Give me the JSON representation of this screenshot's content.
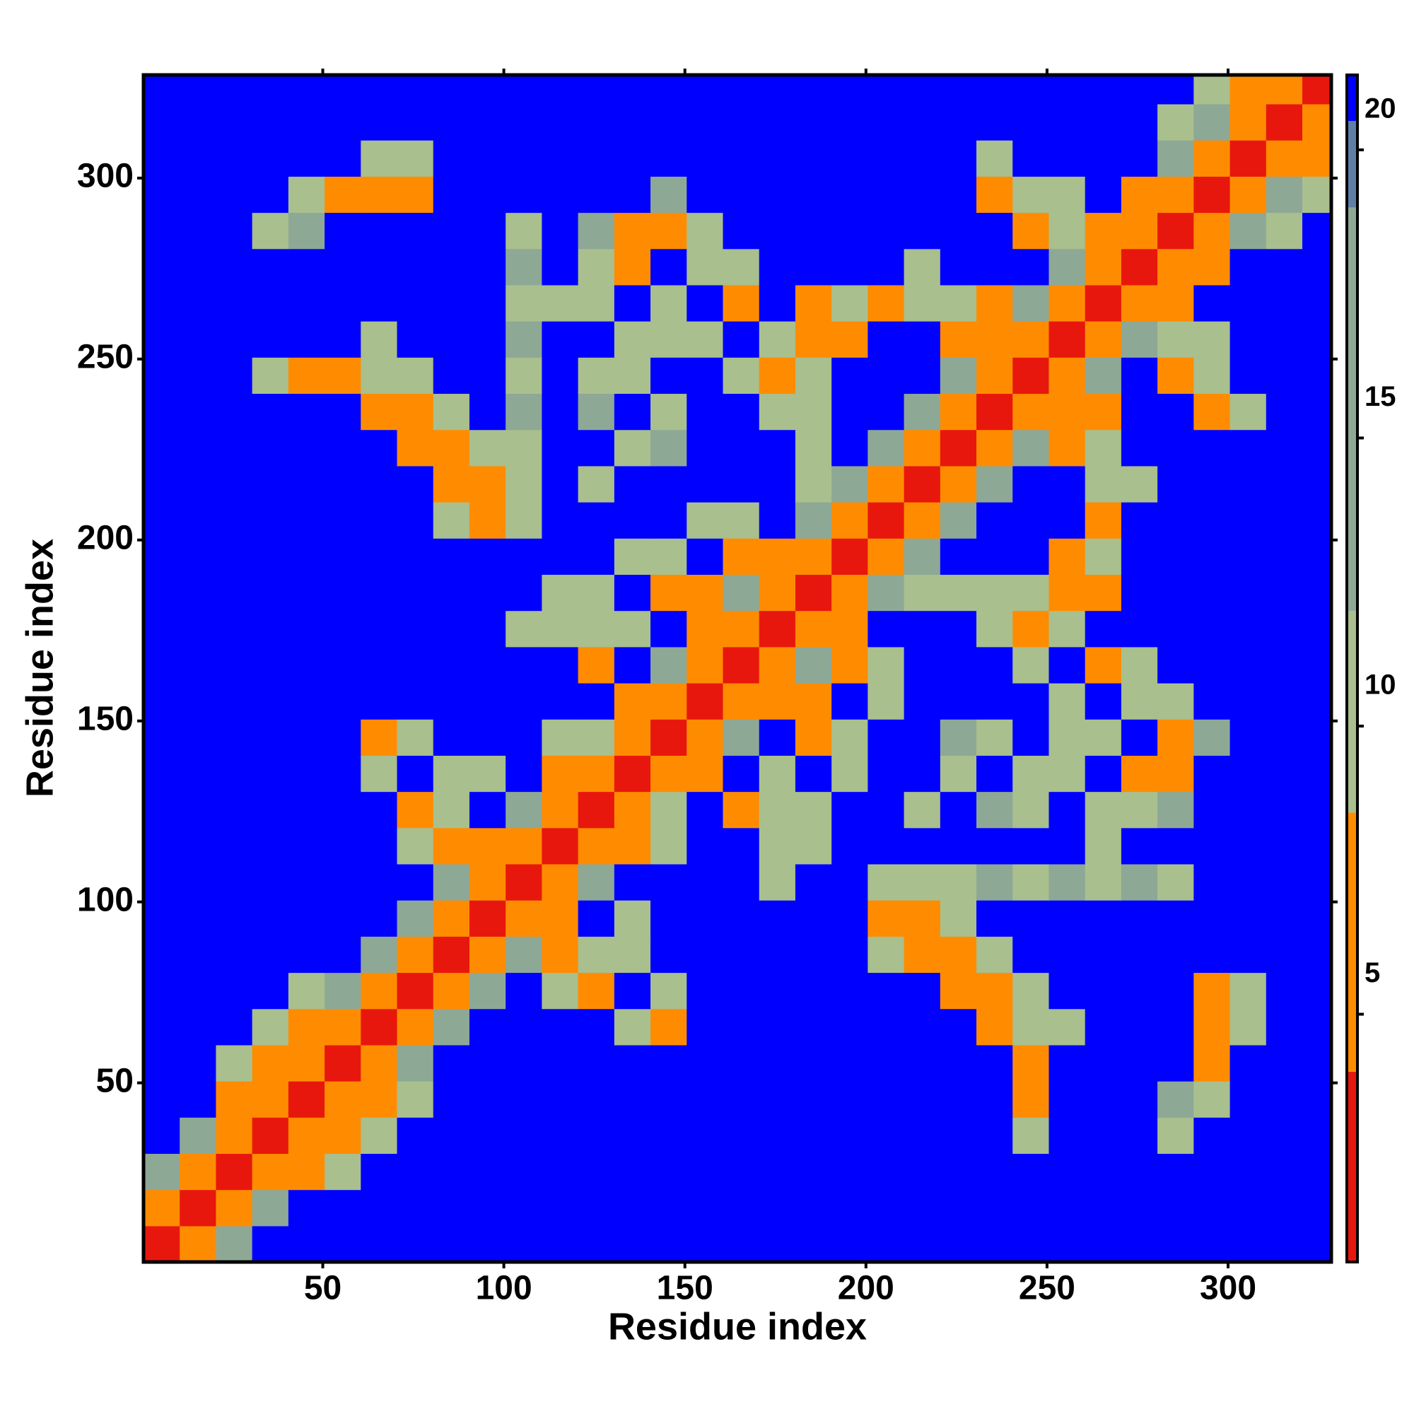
{
  "chart_data": {
    "type": "heatmap",
    "xlabel": "Residue index",
    "ylabel": "Residue index",
    "xlim": [
      0.5,
      328.5
    ],
    "ylim": [
      0.5,
      328.5
    ],
    "xticks": [
      50,
      100,
      150,
      200,
      250,
      300
    ],
    "yticks": [
      50,
      100,
      150,
      200,
      250,
      300
    ],
    "zlim": [
      0.7,
      21.3
    ],
    "zticks": [
      5,
      10,
      15,
      20
    ],
    "colorscale": [
      {
        "max": 4,
        "color": "#e8170d"
      },
      {
        "max": 8.5,
        "color": "#ff8c00"
      },
      {
        "max": 12,
        "color": "#a9bf8e"
      },
      {
        "max": 19,
        "color": "#8ea896"
      },
      {
        "max": 20.5,
        "color": "#5f7fa5"
      },
      {
        "max": 21.3,
        "color": "#0000ff"
      }
    ],
    "x": [
      5.5,
      15.5,
      25.5,
      35.5,
      45.5,
      55.5,
      65.5,
      75.5,
      85.5,
      95.5,
      105.5,
      115.5,
      125.5,
      135.5,
      145.5,
      155.5,
      165.5,
      175.5,
      185.5,
      195.5,
      205.5,
      215.5,
      225.5,
      235.5,
      245.5,
      255.5,
      265.5,
      275.5,
      285.5,
      295.5,
      305.5,
      315.5,
      325.5
    ],
    "y": [
      5.5,
      15.5,
      25.5,
      35.5,
      45.5,
      55.5,
      65.5,
      75.5,
      85.5,
      95.5,
      105.5,
      115.5,
      125.5,
      135.5,
      145.5,
      155.5,
      165.5,
      175.5,
      185.5,
      195.5,
      205.5,
      215.5,
      225.5,
      235.5,
      245.5,
      255.5,
      265.5,
      275.5,
      285.5,
      295.5,
      305.5,
      315.5,
      325.5
    ],
    "z": [
      [
        3,
        6,
        13,
        21,
        21,
        21,
        21,
        21,
        21,
        21,
        21,
        21,
        21,
        21,
        21,
        21,
        21,
        21,
        21,
        21,
        21,
        21,
        21,
        21,
        21,
        21,
        21,
        21,
        21,
        21,
        21,
        21,
        21
      ],
      [
        6,
        3,
        6,
        13,
        21,
        21,
        21,
        21,
        21,
        21,
        21,
        21,
        21,
        21,
        21,
        21,
        21,
        21,
        21,
        21,
        21,
        21,
        21,
        21,
        21,
        21,
        21,
        21,
        21,
        21,
        21,
        21,
        21
      ],
      [
        13,
        6,
        3,
        6,
        8,
        11,
        21,
        21,
        21,
        21,
        21,
        21,
        21,
        21,
        21,
        21,
        21,
        21,
        21,
        21,
        21,
        21,
        21,
        21,
        21,
        21,
        21,
        21,
        21,
        21,
        21,
        21,
        21
      ],
      [
        21,
        13,
        6,
        3,
        6,
        8,
        11,
        21,
        21,
        21,
        21,
        21,
        21,
        21,
        21,
        21,
        21,
        21,
        21,
        21,
        21,
        21,
        21,
        21,
        11,
        21,
        21,
        21,
        11,
        21,
        21,
        21,
        21
      ],
      [
        21,
        21,
        8,
        6,
        3,
        6,
        8,
        11,
        21,
        21,
        21,
        21,
        21,
        21,
        21,
        21,
        21,
        21,
        21,
        21,
        21,
        21,
        21,
        21,
        8,
        21,
        21,
        21,
        13,
        11,
        21,
        21,
        21
      ],
      [
        21,
        21,
        11,
        8,
        6,
        3,
        6,
        13,
        21,
        21,
        21,
        21,
        21,
        21,
        21,
        21,
        21,
        21,
        21,
        21,
        21,
        21,
        21,
        21,
        8,
        21,
        21,
        21,
        21,
        8,
        21,
        21,
        21
      ],
      [
        21,
        21,
        21,
        11,
        8,
        6,
        3,
        6,
        13,
        21,
        21,
        21,
        21,
        11,
        8,
        21,
        21,
        21,
        21,
        21,
        21,
        21,
        21,
        8,
        11,
        11,
        21,
        21,
        21,
        8,
        11,
        21,
        21
      ],
      [
        21,
        21,
        21,
        21,
        11,
        13,
        6,
        3,
        6,
        13,
        21,
        11,
        8,
        21,
        11,
        21,
        21,
        21,
        21,
        21,
        21,
        21,
        8,
        8,
        11,
        21,
        21,
        21,
        21,
        8,
        11,
        21,
        21
      ],
      [
        21,
        21,
        21,
        21,
        21,
        21,
        13,
        6,
        3,
        6,
        13,
        6,
        11,
        11,
        21,
        21,
        21,
        21,
        21,
        21,
        11,
        6,
        6,
        11,
        21,
        21,
        21,
        21,
        21,
        21,
        21,
        21,
        21
      ],
      [
        21,
        21,
        21,
        21,
        21,
        21,
        21,
        13,
        6,
        3,
        6,
        8,
        21,
        11,
        21,
        21,
        21,
        21,
        21,
        21,
        8,
        6,
        11,
        21,
        21,
        21,
        21,
        21,
        21,
        21,
        21,
        21,
        21
      ],
      [
        21,
        21,
        21,
        21,
        21,
        21,
        21,
        21,
        13,
        6,
        3,
        6,
        13,
        21,
        21,
        21,
        21,
        11,
        21,
        21,
        11,
        11,
        11,
        13,
        11,
        13,
        11,
        13,
        11,
        21,
        21,
        21,
        21
      ],
      [
        21,
        21,
        21,
        21,
        21,
        21,
        21,
        11,
        6,
        8,
        6,
        3,
        6,
        8,
        11,
        21,
        21,
        11,
        11,
        21,
        21,
        21,
        21,
        21,
        21,
        21,
        11,
        21,
        21,
        21,
        21,
        21,
        21
      ],
      [
        21,
        21,
        21,
        21,
        21,
        21,
        21,
        8,
        11,
        21,
        13,
        6,
        3,
        6,
        11,
        21,
        8,
        11,
        11,
        21,
        21,
        11,
        21,
        13,
        11,
        21,
        11,
        11,
        13,
        21,
        21,
        21,
        21
      ],
      [
        21,
        21,
        21,
        21,
        21,
        21,
        11,
        21,
        11,
        11,
        21,
        8,
        6,
        3,
        6,
        6,
        21,
        11,
        21,
        11,
        21,
        21,
        11,
        21,
        11,
        11,
        21,
        8,
        8,
        21,
        21,
        21,
        21
      ],
      [
        21,
        21,
        21,
        21,
        21,
        21,
        8,
        11,
        21,
        21,
        21,
        11,
        11,
        6,
        3,
        6,
        13,
        21,
        8,
        11,
        21,
        21,
        13,
        11,
        21,
        11,
        11,
        21,
        8,
        13,
        21,
        21,
        21
      ],
      [
        21,
        21,
        21,
        21,
        21,
        21,
        21,
        21,
        21,
        21,
        21,
        21,
        21,
        6,
        6,
        3,
        6,
        8,
        6,
        21,
        11,
        21,
        21,
        21,
        21,
        11,
        21,
        11,
        11,
        21,
        21,
        21,
        21
      ],
      [
        21,
        21,
        21,
        21,
        21,
        21,
        21,
        21,
        21,
        21,
        21,
        21,
        8,
        21,
        13,
        6,
        3,
        6,
        13,
        8,
        11,
        21,
        21,
        21,
        11,
        21,
        8,
        11,
        21,
        21,
        21,
        21,
        21
      ],
      [
        21,
        21,
        21,
        21,
        21,
        21,
        21,
        21,
        21,
        21,
        11,
        11,
        11,
        11,
        21,
        8,
        6,
        3,
        6,
        8,
        21,
        21,
        21,
        11,
        8,
        11,
        21,
        21,
        21,
        21,
        21,
        21,
        21
      ],
      [
        21,
        21,
        21,
        21,
        21,
        21,
        21,
        21,
        21,
        21,
        21,
        11,
        11,
        21,
        8,
        6,
        13,
        6,
        3,
        6,
        13,
        11,
        11,
        11,
        11,
        8,
        8,
        21,
        21,
        21,
        21,
        21,
        21
      ],
      [
        21,
        21,
        21,
        21,
        21,
        21,
        21,
        21,
        21,
        21,
        21,
        21,
        21,
        11,
        11,
        21,
        8,
        8,
        6,
        3,
        6,
        13,
        21,
        21,
        21,
        6,
        11,
        21,
        21,
        21,
        21,
        21,
        21
      ],
      [
        21,
        21,
        21,
        21,
        21,
        21,
        21,
        21,
        11,
        8,
        11,
        21,
        21,
        21,
        21,
        11,
        11,
        21,
        13,
        6,
        3,
        6,
        13,
        21,
        21,
        21,
        8,
        21,
        21,
        21,
        21,
        21,
        21
      ],
      [
        21,
        21,
        21,
        21,
        21,
        21,
        21,
        21,
        6,
        6,
        11,
        21,
        11,
        21,
        21,
        21,
        21,
        21,
        11,
        13,
        6,
        3,
        6,
        13,
        21,
        21,
        11,
        11,
        21,
        21,
        21,
        21,
        21
      ],
      [
        21,
        21,
        21,
        21,
        21,
        21,
        21,
        8,
        6,
        11,
        11,
        21,
        21,
        11,
        13,
        21,
        21,
        21,
        11,
        21,
        13,
        6,
        3,
        6,
        13,
        8,
        11,
        21,
        21,
        21,
        21,
        21,
        21
      ],
      [
        21,
        21,
        21,
        21,
        21,
        21,
        8,
        8,
        11,
        21,
        13,
        21,
        13,
        21,
        11,
        21,
        21,
        11,
        11,
        21,
        21,
        13,
        6,
        3,
        6,
        6,
        8,
        21,
        21,
        6,
        11,
        21,
        21
      ],
      [
        21,
        21,
        21,
        11,
        8,
        8,
        11,
        11,
        21,
        21,
        11,
        21,
        11,
        11,
        21,
        21,
        11,
        8,
        11,
        21,
        21,
        21,
        13,
        6,
        3,
        6,
        13,
        21,
        8,
        11,
        21,
        21,
        21
      ],
      [
        21,
        21,
        21,
        21,
        21,
        21,
        11,
        21,
        21,
        21,
        13,
        21,
        21,
        11,
        11,
        11,
        21,
        11,
        8,
        6,
        21,
        21,
        8,
        6,
        6,
        3,
        6,
        13,
        11,
        11,
        21,
        21,
        21
      ],
      [
        21,
        21,
        21,
        21,
        21,
        21,
        21,
        21,
        21,
        21,
        11,
        11,
        11,
        21,
        11,
        21,
        8,
        21,
        8,
        11,
        8,
        11,
        11,
        8,
        13,
        6,
        3,
        6,
        8,
        21,
        21,
        21,
        21
      ],
      [
        21,
        21,
        21,
        21,
        21,
        21,
        21,
        21,
        21,
        21,
        13,
        21,
        11,
        8,
        21,
        11,
        11,
        21,
        21,
        21,
        21,
        11,
        21,
        21,
        21,
        13,
        6,
        3,
        6,
        8,
        21,
        21,
        21
      ],
      [
        21,
        21,
        21,
        11,
        13,
        21,
        21,
        21,
        21,
        21,
        11,
        21,
        13,
        8,
        8,
        11,
        21,
        21,
        21,
        21,
        21,
        21,
        21,
        21,
        8,
        11,
        8,
        6,
        3,
        6,
        13,
        11,
        21
      ],
      [
        21,
        21,
        21,
        21,
        11,
        8,
        8,
        8,
        21,
        21,
        21,
        21,
        21,
        21,
        13,
        21,
        21,
        21,
        21,
        21,
        21,
        21,
        21,
        6,
        11,
        11,
        21,
        8,
        6,
        3,
        6,
        13,
        11
      ],
      [
        21,
        21,
        21,
        21,
        21,
        21,
        11,
        11,
        21,
        21,
        21,
        21,
        21,
        21,
        21,
        21,
        21,
        21,
        21,
        21,
        21,
        21,
        21,
        11,
        21,
        21,
        21,
        21,
        13,
        6,
        3,
        6,
        8
      ],
      [
        21,
        21,
        21,
        21,
        21,
        21,
        21,
        21,
        21,
        21,
        21,
        21,
        21,
        21,
        21,
        21,
        21,
        21,
        21,
        21,
        21,
        21,
        21,
        21,
        21,
        21,
        21,
        21,
        11,
        13,
        6,
        3,
        6
      ],
      [
        21,
        21,
        21,
        21,
        21,
        21,
        21,
        21,
        21,
        21,
        21,
        21,
        21,
        21,
        21,
        21,
        21,
        21,
        21,
        21,
        21,
        21,
        21,
        21,
        21,
        21,
        21,
        21,
        21,
        11,
        8,
        6,
        3
      ]
    ]
  }
}
